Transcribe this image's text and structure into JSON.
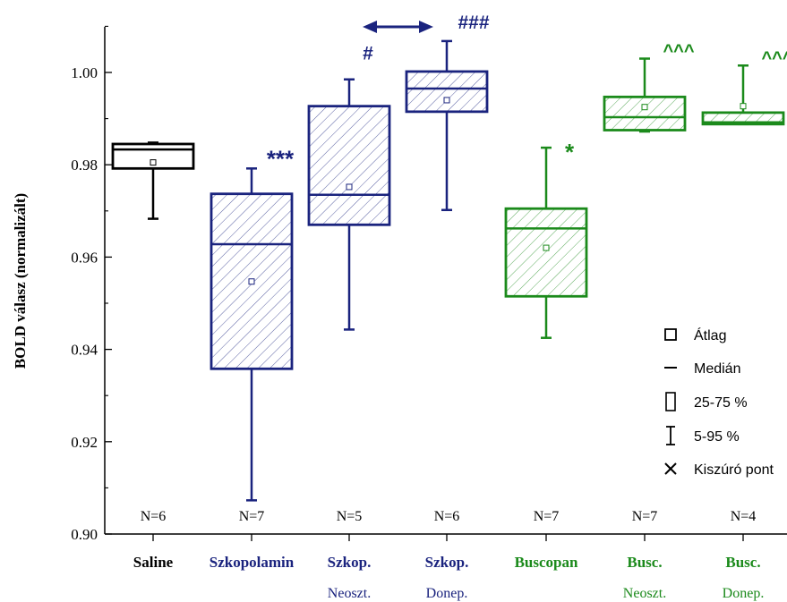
{
  "chart_data": {
    "type": "box",
    "ylabel": "BOLD válasz (normalizált)",
    "ylim": [
      0.9,
      1.01
    ],
    "yticks": [
      0.9,
      0.92,
      0.94,
      0.96,
      0.98,
      1.0
    ],
    "ytick_labels": [
      "0.90",
      "0.92",
      "0.94",
      "0.96",
      "0.98",
      "1.00"
    ],
    "colors": {
      "saline": "#000000",
      "scopolamine": "#1a237e",
      "buscopan": "#1b8a1b"
    },
    "groups": [
      {
        "label": "Saline",
        "sublabel": "",
        "n": "N=6",
        "color": "#000000",
        "hatched": false,
        "whisker_low": 0.9683,
        "q1": 0.9792,
        "median": 0.9833,
        "q3": 0.9845,
        "whisker_high": 0.9848,
        "mean": 0.9805,
        "significance": ""
      },
      {
        "label": "Szkopolamin",
        "sublabel": "",
        "n": "N=7",
        "color": "#1a237e",
        "hatched": true,
        "whisker_low": 0.9073,
        "q1": 0.9358,
        "median": 0.9628,
        "q3": 0.9737,
        "whisker_high": 0.9792,
        "mean": 0.9547,
        "significance": "***"
      },
      {
        "label": "Szkop.",
        "sublabel": "Neoszt.",
        "n": "N=5",
        "color": "#1a237e",
        "hatched": true,
        "whisker_low": 0.9443,
        "q1": 0.967,
        "median": 0.9735,
        "q3": 0.9927,
        "whisker_high": 0.9985,
        "mean": 0.9752,
        "significance": "#"
      },
      {
        "label": "Szkop.",
        "sublabel": "Donep.",
        "n": "N=6",
        "color": "#1a237e",
        "hatched": true,
        "whisker_low": 0.9702,
        "q1": 0.9915,
        "median": 0.9965,
        "q3": 1.0002,
        "whisker_high": 1.0068,
        "mean": 0.994,
        "significance": "###"
      },
      {
        "label": "Buscopan",
        "sublabel": "",
        "n": "N=7",
        "color": "#1b8a1b",
        "hatched": true,
        "whisker_low": 0.9425,
        "q1": 0.9515,
        "median": 0.9662,
        "q3": 0.9705,
        "whisker_high": 0.9837,
        "mean": 0.962,
        "significance": "*"
      },
      {
        "label": "Busc.",
        "sublabel": "Neoszt.",
        "n": "N=7",
        "color": "#1b8a1b",
        "hatched": true,
        "whisker_low": 0.9872,
        "q1": 0.9875,
        "median": 0.9903,
        "q3": 0.9947,
        "whisker_high": 1.003,
        "mean": 0.9925,
        "significance": "^^^"
      },
      {
        "label": "Busc.",
        "sublabel": "Donep.",
        "n": "N=4",
        "color": "#1b8a1b",
        "hatched": true,
        "whisker_low": 0.9888,
        "q1": 0.9888,
        "median": 0.9892,
        "q3": 0.9913,
        "whisker_high": 1.0015,
        "mean": 0.9927,
        "significance": "^^^"
      }
    ],
    "comparison_arrow": {
      "from_group": 2,
      "to_group": 3,
      "color": "#1a237e"
    },
    "legend": {
      "position": "right",
      "items": [
        {
          "symbol": "mean-square",
          "label": "Átlag"
        },
        {
          "symbol": "median-line",
          "label": "Medián"
        },
        {
          "symbol": "box-rect",
          "label": "25-75 %"
        },
        {
          "symbol": "whisker",
          "label": "5-95 %"
        },
        {
          "symbol": "x-mark",
          "label": "Kiszúró pont"
        }
      ]
    }
  }
}
